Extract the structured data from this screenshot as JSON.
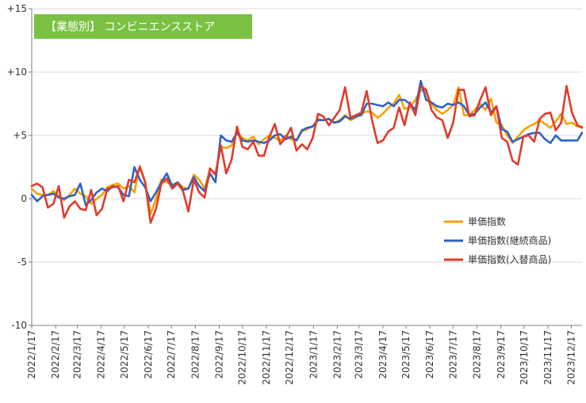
{
  "chart_data": {
    "type": "line",
    "title": "【業態別】 コンビニエンスストア",
    "colors": {
      "title_bg": "#7ac143",
      "grid": "#d9d9d9",
      "axis": "#7f7f7f"
    },
    "ylim": [
      -10,
      15
    ],
    "yticks": [
      -10,
      -5,
      0,
      5,
      10,
      15
    ],
    "ytick_labels": [
      "-10",
      "-5",
      "0",
      "+5",
      "+10",
      "+15"
    ],
    "x_start": "2022-01-17",
    "x_end": "2023-12-31",
    "xtick_dates": [
      "2022-01-17",
      "2022-02-17",
      "2022-03-17",
      "2022-04-17",
      "2022-05-17",
      "2022-06-17",
      "2022-07-17",
      "2022-08-17",
      "2022-09-17",
      "2022-10-17",
      "2022-11-17",
      "2022-12-17",
      "2023-01-17",
      "2023-02-17",
      "2023-03-17",
      "2023-04-17",
      "2023-05-17",
      "2023-06-17",
      "2023-07-17",
      "2023-08-17",
      "2023-09-17",
      "2023-10-17",
      "2023-11-17",
      "2023-12-17"
    ],
    "xtick_labels": [
      "2022/1/17",
      "2022/2/17",
      "2022/3/17",
      "2022/4/17",
      "2022/5/17",
      "2022/6/17",
      "2022/7/17",
      "2022/8/17",
      "2022/9/17",
      "2022/10/17",
      "2022/11/17",
      "2022/12/17",
      "2023/1/17",
      "2023/2/17",
      "2023/3/17",
      "2023/4/17",
      "2023/5/17",
      "2023/6/17",
      "2023/7/17",
      "2023/8/17",
      "2023/9/17",
      "2023/10/17",
      "2023/11/17",
      "2023/12/17"
    ],
    "x_dates": [
      "2022-01-17",
      "2022-01-24",
      "2022-01-31",
      "2022-02-07",
      "2022-02-14",
      "2022-02-21",
      "2022-02-28",
      "2022-03-07",
      "2022-03-14",
      "2022-03-21",
      "2022-03-28",
      "2022-04-04",
      "2022-04-11",
      "2022-04-18",
      "2022-04-25",
      "2022-05-02",
      "2022-05-09",
      "2022-05-16",
      "2022-05-23",
      "2022-05-30",
      "2022-06-06",
      "2022-06-13",
      "2022-06-20",
      "2022-06-27",
      "2022-07-04",
      "2022-07-11",
      "2022-07-18",
      "2022-07-25",
      "2022-08-01",
      "2022-08-08",
      "2022-08-15",
      "2022-08-22",
      "2022-08-29",
      "2022-09-05",
      "2022-09-12",
      "2022-09-19",
      "2022-09-26",
      "2022-10-03",
      "2022-10-10",
      "2022-10-17",
      "2022-10-24",
      "2022-10-31",
      "2022-11-07",
      "2022-11-14",
      "2022-11-21",
      "2022-11-28",
      "2022-12-05",
      "2022-12-12",
      "2022-12-19",
      "2022-12-26",
      "2023-01-02",
      "2023-01-09",
      "2023-01-16",
      "2023-01-23",
      "2023-01-30",
      "2023-02-06",
      "2023-02-13",
      "2023-02-20",
      "2023-02-27",
      "2023-03-06",
      "2023-03-13",
      "2023-03-20",
      "2023-03-27",
      "2023-04-03",
      "2023-04-10",
      "2023-04-17",
      "2023-04-24",
      "2023-05-01",
      "2023-05-08",
      "2023-05-15",
      "2023-05-22",
      "2023-05-29",
      "2023-06-05",
      "2023-06-12",
      "2023-06-19",
      "2023-06-26",
      "2023-07-03",
      "2023-07-10",
      "2023-07-17",
      "2023-07-24",
      "2023-07-31",
      "2023-08-07",
      "2023-08-14",
      "2023-08-21",
      "2023-08-28",
      "2023-09-04",
      "2023-09-11",
      "2023-09-18",
      "2023-09-25",
      "2023-10-02",
      "2023-10-09",
      "2023-10-16",
      "2023-10-23",
      "2023-10-30",
      "2023-11-06",
      "2023-11-13",
      "2023-11-20",
      "2023-11-27",
      "2023-12-04",
      "2023-12-11",
      "2023-12-18",
      "2023-12-25",
      "2023-12-31"
    ],
    "series": [
      {
        "name": "単価指数",
        "color": "#f7a100",
        "values": [
          0.8,
          0.4,
          0.3,
          0.3,
          0.6,
          0.2,
          -0.1,
          0.3,
          0.8,
          0.4,
          0.2,
          -0.4,
          0.0,
          0.3,
          0.9,
          1.1,
          1.2,
          0.8,
          1.0,
          0.5,
          2.6,
          1.3,
          -1.2,
          0.0,
          1.5,
          1.3,
          1.1,
          1.3,
          0.9,
          0.8,
          1.9,
          1.5,
          0.8,
          2.3,
          2.0,
          4.1,
          4.0,
          4.2,
          5.3,
          4.8,
          4.6,
          4.9,
          4.3,
          4.7,
          5.0,
          4.8,
          4.6,
          5.0,
          4.7,
          4.6,
          5.3,
          5.5,
          5.7,
          6.3,
          6.2,
          6.3,
          6.0,
          6.2,
          6.6,
          6.2,
          6.4,
          6.7,
          6.9,
          6.8,
          6.4,
          6.7,
          7.2,
          7.5,
          8.2,
          7.1,
          7.2,
          7.8,
          8.6,
          8.4,
          7.5,
          7.0,
          6.7,
          7.0,
          7.4,
          8.8,
          6.6,
          6.6,
          7.0,
          7.5,
          7.0,
          7.9,
          6.0,
          5.8,
          5.0,
          4.4,
          4.9,
          5.4,
          5.7,
          5.9,
          6.2,
          5.9,
          5.6,
          6.1,
          6.7,
          5.9,
          6.0,
          5.7,
          5.7
        ]
      },
      {
        "name": "単価指数(継続商品)",
        "color": "#2e63c4",
        "values": [
          0.3,
          -0.2,
          0.2,
          0.3,
          0.4,
          0.1,
          0.0,
          0.2,
          0.3,
          1.2,
          -0.5,
          -0.1,
          0.5,
          0.8,
          0.6,
          1.0,
          0.9,
          0.3,
          0.2,
          2.5,
          1.5,
          0.9,
          -0.2,
          0.5,
          1.3,
          2.0,
          1.0,
          1.3,
          0.7,
          0.8,
          1.7,
          1.0,
          0.6,
          2.0,
          1.3,
          5.0,
          4.6,
          4.5,
          5.2,
          4.6,
          4.5,
          4.6,
          4.5,
          4.4,
          4.6,
          5.0,
          5.1,
          4.7,
          4.9,
          4.6,
          5.4,
          5.6,
          5.7,
          6.2,
          6.2,
          6.3,
          6.0,
          6.1,
          6.5,
          6.3,
          6.5,
          6.6,
          7.5,
          7.5,
          7.4,
          7.3,
          7.6,
          7.3,
          7.8,
          7.8,
          7.5,
          7.0,
          9.3,
          7.8,
          7.6,
          7.3,
          7.2,
          7.5,
          7.4,
          7.6,
          7.3,
          6.6,
          6.7,
          7.2,
          7.6,
          6.8,
          7.3,
          5.5,
          5.3,
          4.5,
          4.7,
          4.9,
          5.1,
          5.2,
          5.2,
          4.7,
          4.4,
          5.0,
          4.6,
          4.6,
          4.6,
          4.6,
          5.2
        ]
      },
      {
        "name": "単価指数(入替商品)",
        "color": "#e03b2b",
        "values": [
          1.0,
          1.2,
          0.9,
          -0.7,
          -0.4,
          1.0,
          -1.5,
          -0.6,
          -0.2,
          -0.8,
          -0.9,
          0.7,
          -1.3,
          -0.8,
          0.8,
          0.9,
          1.0,
          -0.2,
          1.5,
          1.3,
          2.5,
          1.3,
          -1.9,
          -0.8,
          1.2,
          1.6,
          0.8,
          1.2,
          0.6,
          -1.0,
          1.5,
          0.5,
          0.1,
          2.4,
          1.9,
          4.2,
          2.0,
          3.1,
          5.7,
          4.1,
          3.9,
          4.5,
          3.4,
          3.4,
          4.9,
          5.9,
          4.3,
          4.8,
          5.6,
          3.8,
          4.3,
          3.9,
          4.8,
          6.7,
          6.5,
          5.8,
          6.4,
          7.0,
          8.8,
          6.4,
          6.6,
          6.8,
          8.5,
          6.2,
          4.4,
          4.6,
          5.3,
          5.6,
          7.2,
          5.8,
          7.6,
          6.6,
          8.9,
          8.6,
          7.0,
          6.4,
          6.2,
          4.8,
          6.0,
          8.6,
          8.6,
          6.5,
          6.6,
          7.8,
          8.8,
          6.6,
          7.3,
          4.8,
          4.5,
          3.0,
          2.7,
          4.9,
          5.0,
          4.5,
          6.3,
          6.7,
          6.8,
          5.4,
          6.0,
          8.9,
          6.8,
          5.8,
          5.6
        ]
      }
    ],
    "legend_position": "right-middle",
    "grid": "horizontal"
  }
}
